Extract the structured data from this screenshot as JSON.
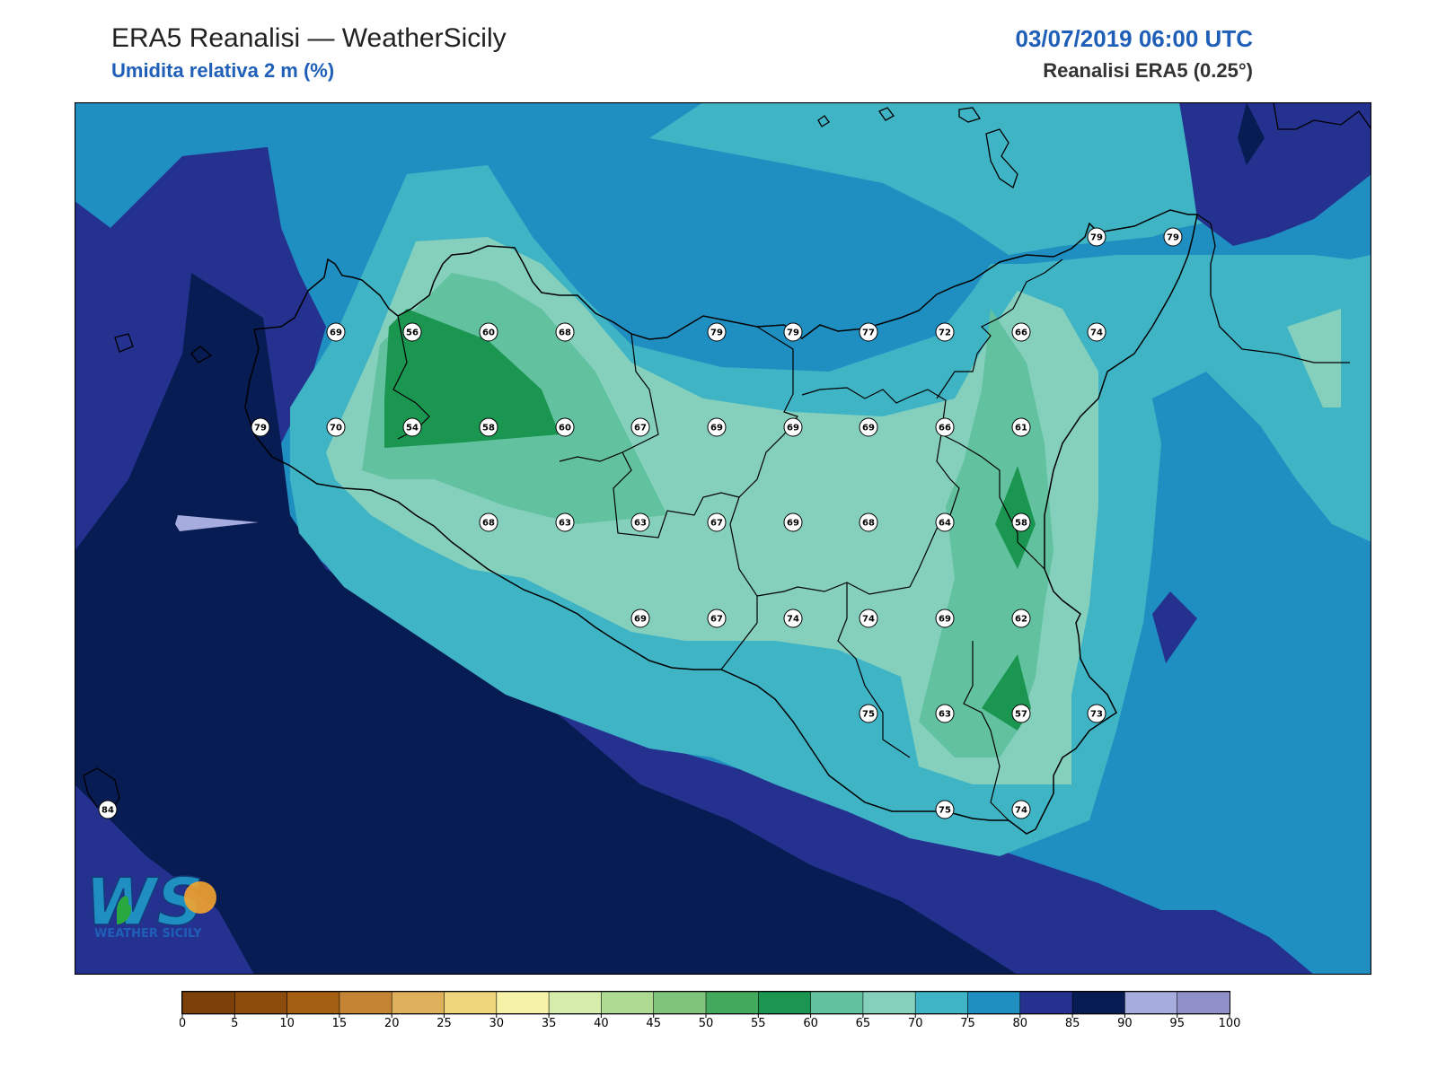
{
  "header": {
    "title": "ERA5 Reanalisi — WeatherSicily",
    "subtitle": "Umidita relativa 2 m (%)",
    "datetime": "03/07/2019 06:00 UTC",
    "source": "Reanalisi ERA5 (0.25°)"
  },
  "logo": {
    "letters": "WS",
    "text": "WEATHER SICILY"
  },
  "colorbar": {
    "ticks": [
      "0",
      "5",
      "10",
      "15",
      "20",
      "25",
      "30",
      "35",
      "40",
      "45",
      "50",
      "55",
      "60",
      "65",
      "70",
      "75",
      "80",
      "85",
      "90",
      "95",
      "100"
    ],
    "colors": [
      "#7a4007",
      "#8c4c0c",
      "#a55f12",
      "#c48434",
      "#deb05b",
      "#eed67c",
      "#f6f3a8",
      "#d6ecaa",
      "#aedb92",
      "#7ec47b",
      "#43a95c",
      "#1b9651",
      "#62c2a0",
      "#85d0bd",
      "#3fb4c5",
      "#1f8fc2",
      "#24318f",
      "#081c54",
      "#a6acdd",
      "#9090c9"
    ]
  },
  "stations": [
    {
      "v": "79"
    },
    {
      "v": "79"
    },
    {
      "v": "69"
    },
    {
      "v": "56"
    },
    {
      "v": "60"
    },
    {
      "v": "68"
    },
    {
      "v": "79"
    },
    {
      "v": "79"
    },
    {
      "v": "77"
    },
    {
      "v": "72"
    },
    {
      "v": "66"
    },
    {
      "v": "74"
    },
    {
      "v": "79"
    },
    {
      "v": "70"
    },
    {
      "v": "54"
    },
    {
      "v": "58"
    },
    {
      "v": "60"
    },
    {
      "v": "67"
    },
    {
      "v": "69"
    },
    {
      "v": "69"
    },
    {
      "v": "69"
    },
    {
      "v": "66"
    },
    {
      "v": "61"
    },
    {
      "v": "68"
    },
    {
      "v": "63"
    },
    {
      "v": "63"
    },
    {
      "v": "67"
    },
    {
      "v": "69"
    },
    {
      "v": "68"
    },
    {
      "v": "64"
    },
    {
      "v": "58"
    },
    {
      "v": "69"
    },
    {
      "v": "67"
    },
    {
      "v": "74"
    },
    {
      "v": "74"
    },
    {
      "v": "69"
    },
    {
      "v": "62"
    },
    {
      "v": "75"
    },
    {
      "v": "63"
    },
    {
      "v": "57"
    },
    {
      "v": "73"
    },
    {
      "v": "84"
    },
    {
      "v": "75"
    },
    {
      "v": "74"
    }
  ]
}
